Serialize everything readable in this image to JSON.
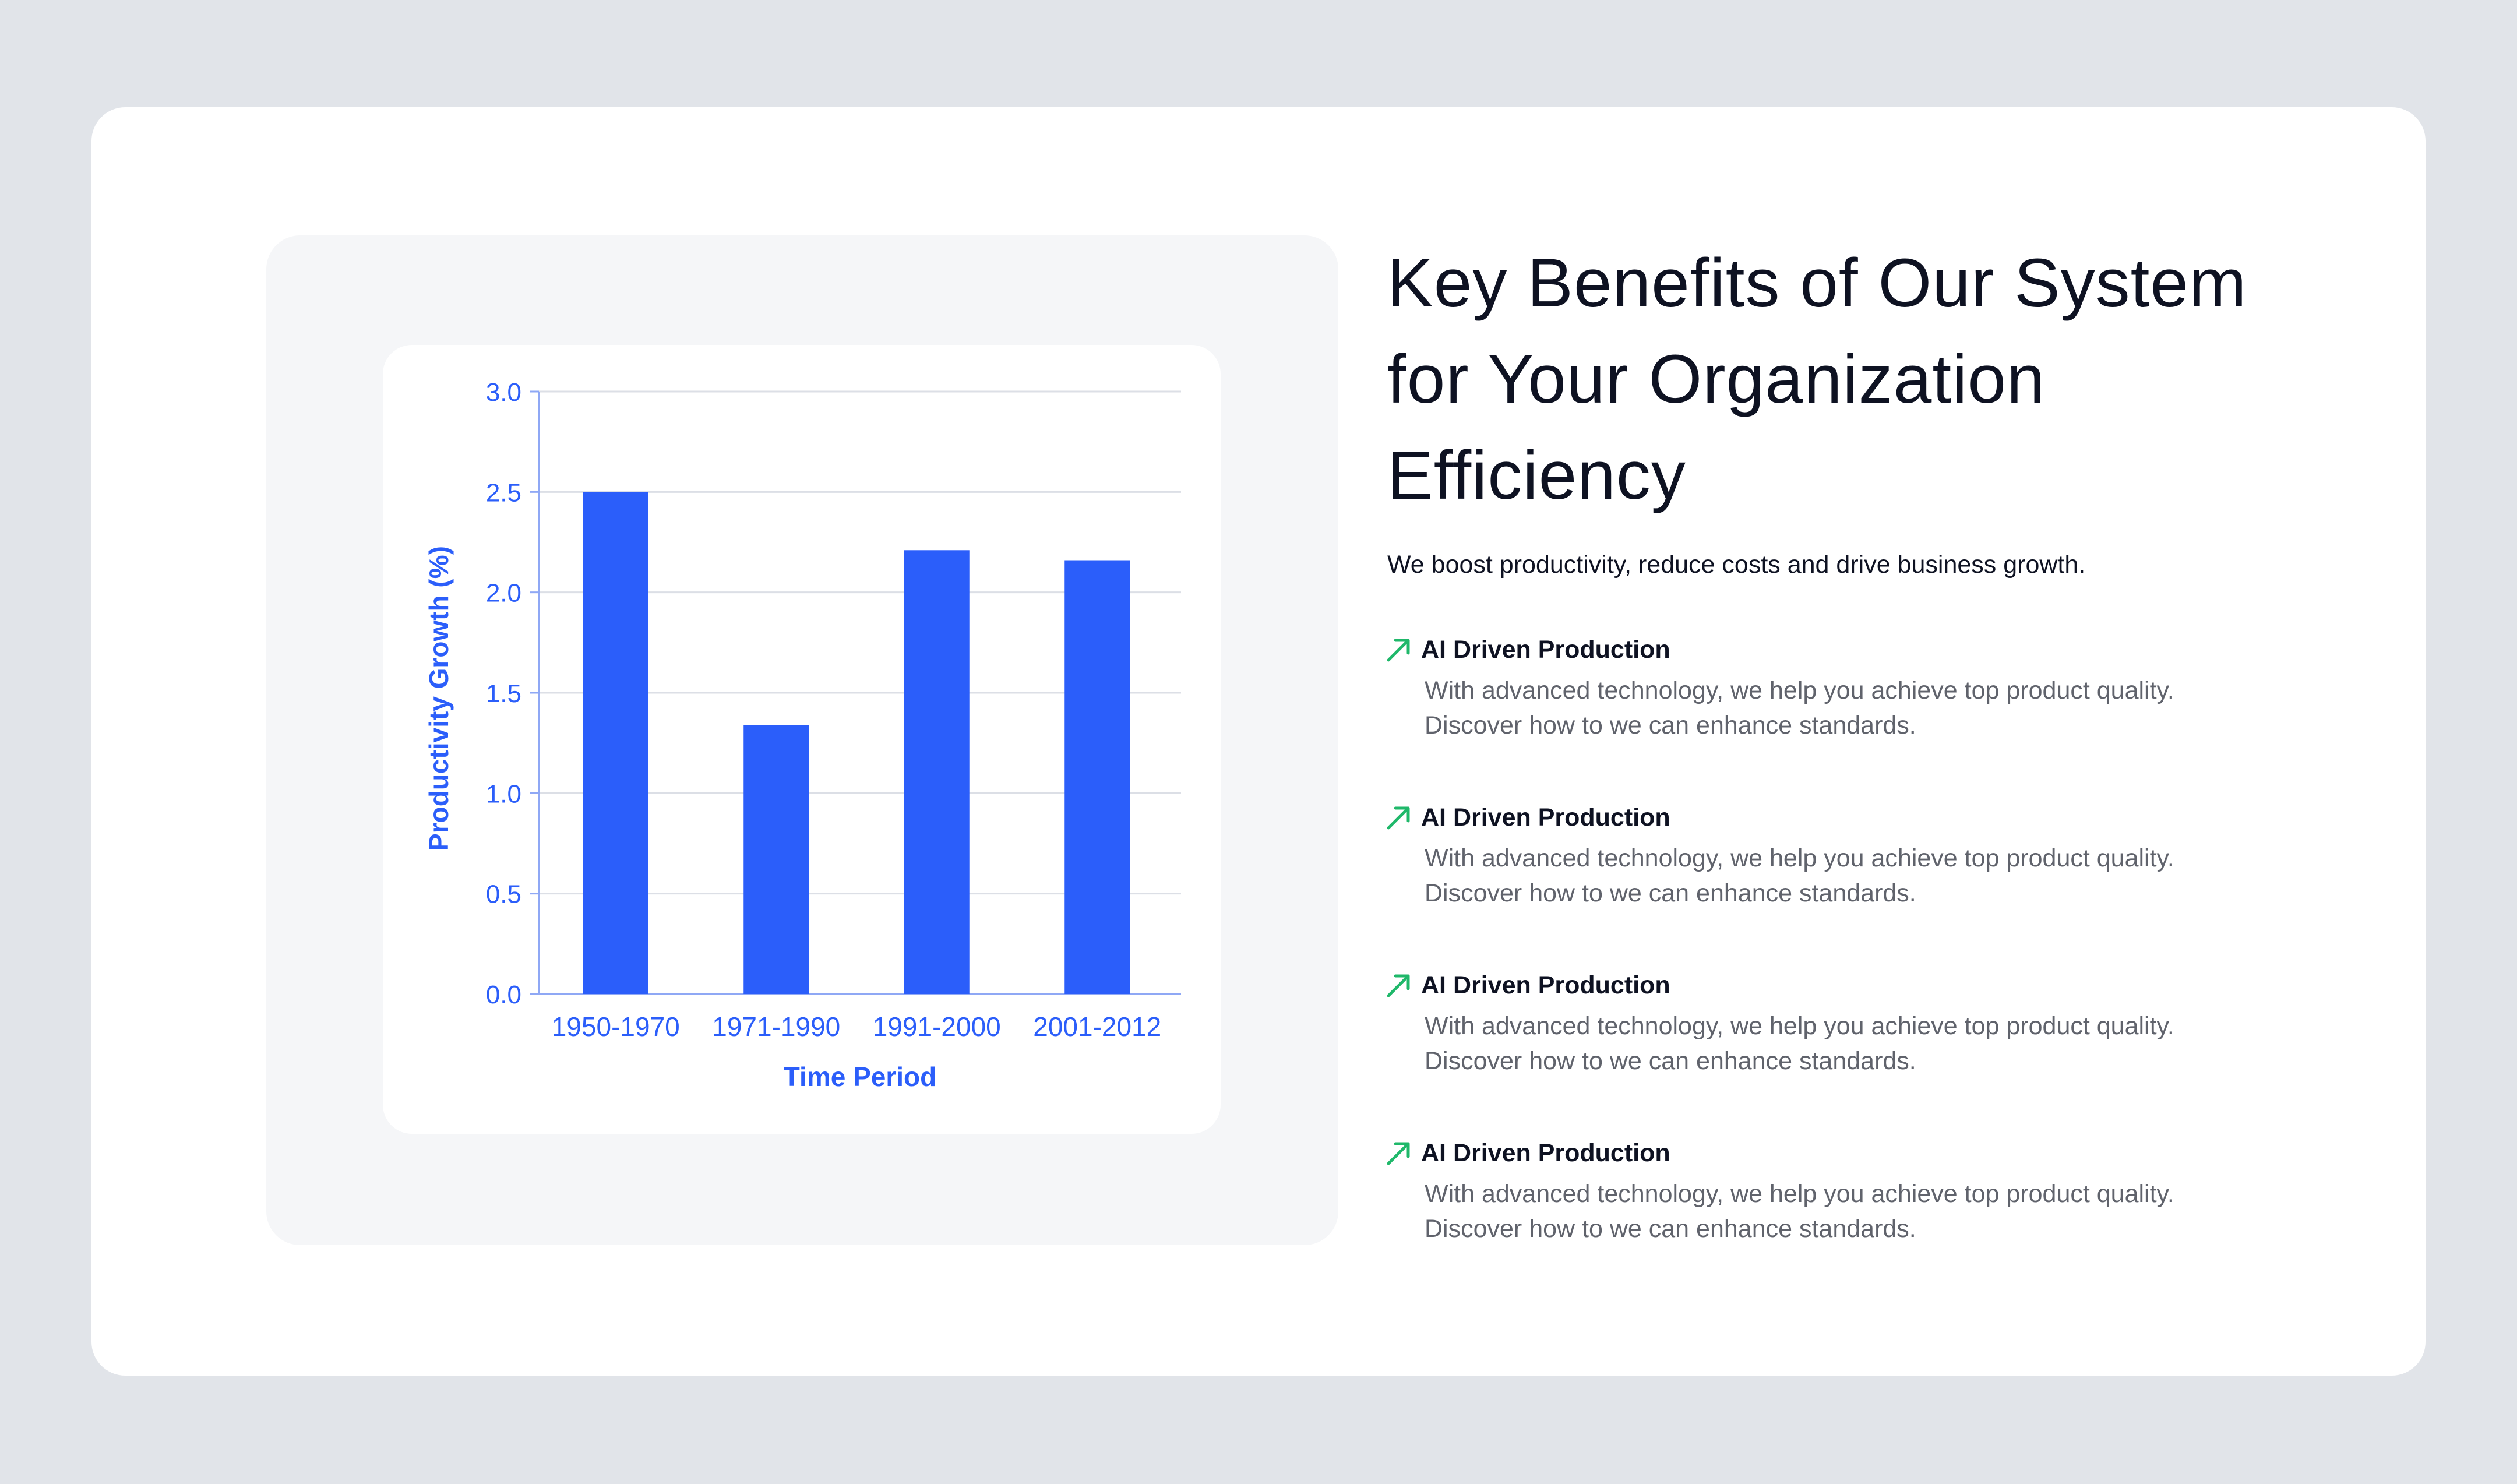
{
  "header": {
    "title_lines": [
      "Key Benefits of Our System",
      "for Your Organization",
      "Efficiency"
    ],
    "subtitle": "We boost productivity, reduce costs and drive business growth."
  },
  "benefits": [
    {
      "icon": "arrow-up-right-icon",
      "title": "AI Driven Production",
      "desc_line1": "With advanced technology, we help you achieve top product quality.",
      "desc_line2": "Discover how to we can enhance standards."
    },
    {
      "icon": "arrow-up-right-icon",
      "title": "AI Driven Production",
      "desc_line1": "With advanced technology, we help you achieve top product quality.",
      "desc_line2": "Discover how to we can enhance standards."
    },
    {
      "icon": "arrow-up-right-icon",
      "title": "AI Driven Production",
      "desc_line1": "With advanced technology, we help you achieve top product quality.",
      "desc_line2": "Discover how to we can enhance standards."
    },
    {
      "icon": "arrow-up-right-icon",
      "title": "AI Driven Production",
      "desc_line1": "With advanced technology, we help you achieve top product quality.",
      "desc_line2": "Discover how to we can enhance standards."
    }
  ],
  "colors": {
    "bar": "#2b5efa",
    "axis_text": "#2b5efa",
    "accent_arrow": "#1fb86a",
    "heading": "#0e1222",
    "body_text": "#60636c"
  },
  "chart_data": {
    "type": "bar",
    "categories": [
      "1950-1970",
      "1971-1990",
      "1991-2000",
      "2001-2012"
    ],
    "values": [
      2.5,
      1.34,
      2.21,
      2.16
    ],
    "xlabel": "Time Period",
    "ylabel": "Productivity Growth (%)",
    "ylim": [
      0,
      3.0
    ],
    "yticks": [
      "0.0",
      "0.5",
      "1.0",
      "1.5",
      "2.0",
      "2.5",
      "3.0"
    ],
    "grid": true
  }
}
